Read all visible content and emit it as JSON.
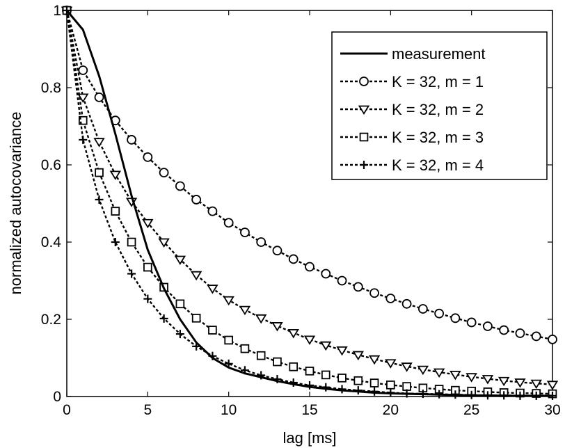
{
  "chart_data": {
    "type": "line",
    "title": "",
    "xlabel": "lag [ms]",
    "ylabel": "normalized autocovariance",
    "xlim": [
      0,
      30
    ],
    "ylim": [
      0,
      1
    ],
    "xticks": [
      0,
      5,
      10,
      15,
      20,
      25,
      30
    ],
    "xtick_labels": [
      "0",
      "5",
      "10",
      "15",
      "20",
      "25",
      "30"
    ],
    "yticks": [
      0,
      0.2,
      0.4,
      0.6,
      0.8,
      1
    ],
    "ytick_labels": [
      "0",
      "0.2",
      "0.4",
      "0.6",
      "0.8",
      "1"
    ],
    "grid": false,
    "legend_position": "top-right",
    "series": [
      {
        "name": "measurement",
        "line": "solid",
        "marker": "none",
        "x": [
          0,
          1,
          2,
          3,
          4,
          5,
          6,
          7,
          8,
          9,
          10,
          11,
          12,
          13,
          14,
          15,
          16,
          17,
          18,
          19,
          20,
          21,
          22,
          23,
          24,
          25,
          26,
          27,
          28,
          29,
          30
        ],
        "y": [
          1.0,
          0.95,
          0.83,
          0.68,
          0.52,
          0.38,
          0.28,
          0.2,
          0.14,
          0.1,
          0.075,
          0.06,
          0.05,
          0.04,
          0.032,
          0.025,
          0.02,
          0.016,
          0.013,
          0.01,
          0.008,
          0.007,
          0.006,
          0.005,
          0.004,
          0.003,
          0.003,
          0.002,
          0.002,
          0.002,
          0.002
        ]
      },
      {
        "name": "K = 32, m = 1",
        "line": "dashed",
        "marker": "circle",
        "x": [
          0,
          1,
          2,
          3,
          4,
          5,
          6,
          7,
          8,
          9,
          10,
          11,
          12,
          13,
          14,
          15,
          16,
          17,
          18,
          19,
          20,
          21,
          22,
          23,
          24,
          25,
          26,
          27,
          28,
          29,
          30
        ],
        "y": [
          1.0,
          0.845,
          0.775,
          0.715,
          0.665,
          0.62,
          0.58,
          0.545,
          0.51,
          0.48,
          0.45,
          0.425,
          0.4,
          0.378,
          0.356,
          0.336,
          0.318,
          0.3,
          0.284,
          0.268,
          0.254,
          0.24,
          0.227,
          0.215,
          0.203,
          0.192,
          0.182,
          0.172,
          0.164,
          0.156,
          0.148
        ]
      },
      {
        "name": "K = 32, m = 2",
        "line": "dashed",
        "marker": "triangle-down",
        "x": [
          0,
          1,
          2,
          3,
          4,
          5,
          6,
          7,
          8,
          9,
          10,
          11,
          12,
          13,
          14,
          15,
          16,
          17,
          18,
          19,
          20,
          21,
          22,
          23,
          24,
          25,
          26,
          27,
          28,
          29,
          30
        ],
        "y": [
          1.0,
          0.775,
          0.66,
          0.575,
          0.505,
          0.45,
          0.4,
          0.355,
          0.315,
          0.28,
          0.25,
          0.225,
          0.203,
          0.183,
          0.165,
          0.148,
          0.133,
          0.12,
          0.108,
          0.097,
          0.087,
          0.078,
          0.07,
          0.063,
          0.057,
          0.051,
          0.046,
          0.041,
          0.037,
          0.034,
          0.031
        ]
      },
      {
        "name": "K = 32, m = 3",
        "line": "dashed",
        "marker": "square",
        "x": [
          0,
          1,
          2,
          3,
          4,
          5,
          6,
          7,
          8,
          9,
          10,
          11,
          12,
          13,
          14,
          15,
          16,
          17,
          18,
          19,
          20,
          21,
          22,
          23,
          24,
          25,
          26,
          27,
          28,
          29,
          30
        ],
        "y": [
          1.0,
          0.715,
          0.58,
          0.48,
          0.4,
          0.335,
          0.283,
          0.24,
          0.203,
          0.172,
          0.146,
          0.124,
          0.106,
          0.09,
          0.077,
          0.066,
          0.056,
          0.048,
          0.041,
          0.035,
          0.03,
          0.026,
          0.022,
          0.019,
          0.016,
          0.014,
          0.012,
          0.01,
          0.009,
          0.008,
          0.007
        ]
      },
      {
        "name": "K = 32, m = 4",
        "line": "dashed",
        "marker": "plus",
        "x": [
          0,
          1,
          2,
          3,
          4,
          5,
          6,
          7,
          8,
          9,
          10,
          11,
          12,
          13,
          14,
          15,
          16,
          17,
          18,
          19,
          20,
          21,
          22,
          23,
          24,
          25,
          26,
          27,
          28,
          29,
          30
        ],
        "y": [
          1.0,
          0.665,
          0.51,
          0.4,
          0.318,
          0.253,
          0.202,
          0.162,
          0.13,
          0.105,
          0.085,
          0.068,
          0.055,
          0.045,
          0.036,
          0.029,
          0.024,
          0.019,
          0.016,
          0.013,
          0.01,
          0.008,
          0.007,
          0.006,
          0.005,
          0.004,
          0.003,
          0.003,
          0.002,
          0.002,
          0.002
        ]
      }
    ]
  }
}
